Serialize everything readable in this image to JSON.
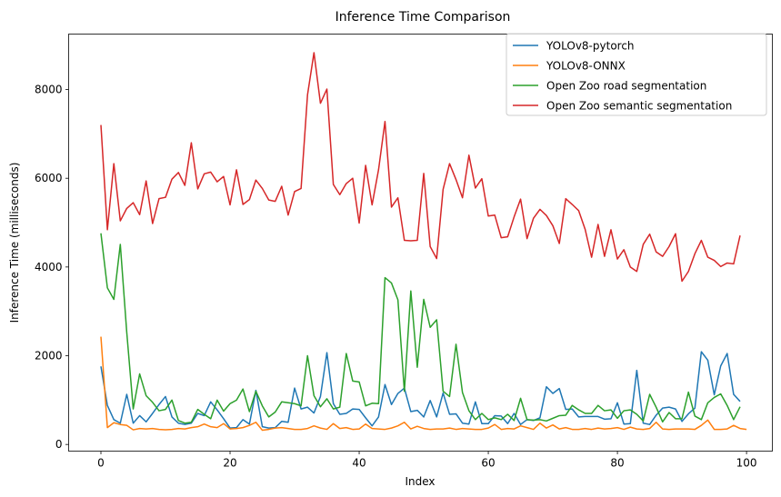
{
  "chart_data": {
    "type": "line",
    "title": "Inference Time Comparison",
    "xlabel": "Index",
    "ylabel": "Inference Time (milliseconds)",
    "xlim": [
      -5,
      104
    ],
    "ylim": [
      -150,
      9250
    ],
    "xticks": [
      0,
      20,
      40,
      60,
      80,
      100
    ],
    "yticks": [
      0,
      2000,
      4000,
      6000,
      8000
    ],
    "legend_position": "top-right",
    "grid": false,
    "series": [
      {
        "name": "YOLOv8-pytorch",
        "color": "#1f77b4",
        "values": [
          1760,
          880,
          560,
          480,
          1130,
          480,
          650,
          510,
          700,
          900,
          1080,
          620,
          480,
          450,
          480,
          700,
          650,
          960,
          780,
          580,
          370,
          380,
          560,
          460,
          1220,
          400,
          370,
          380,
          520,
          500,
          1270,
          800,
          840,
          710,
          1080,
          2070,
          920,
          680,
          700,
          800,
          790,
          600,
          420,
          620,
          1350,
          900,
          1150,
          1270,
          740,
          770,
          620,
          990,
          620,
          1160,
          680,
          690,
          480,
          460,
          960,
          470,
          470,
          650,
          640,
          470,
          700,
          450,
          560,
          540,
          600,
          1300,
          1150,
          1260,
          790,
          800,
          620,
          630,
          630,
          630,
          570,
          580,
          940,
          460,
          470,
          1670,
          480,
          450,
          660,
          820,
          840,
          800,
          520,
          690,
          820,
          2090,
          1900,
          1120,
          1770,
          2050,
          1130,
          970
        ]
      },
      {
        "name": "YOLOv8-ONNX",
        "color": "#ff7f0e",
        "values": [
          2430,
          380,
          490,
          450,
          430,
          330,
          360,
          350,
          360,
          340,
          330,
          340,
          360,
          350,
          380,
          400,
          460,
          400,
          380,
          470,
          350,
          360,
          380,
          430,
          500,
          320,
          340,
          370,
          380,
          360,
          340,
          340,
          360,
          420,
          370,
          340,
          470,
          360,
          380,
          340,
          350,
          460,
          360,
          350,
          340,
          370,
          420,
          500,
          350,
          410,
          360,
          340,
          350,
          350,
          370,
          340,
          360,
          350,
          340,
          340,
          370,
          450,
          340,
          360,
          350,
          420,
          380,
          340,
          480,
          370,
          440,
          350,
          380,
          340,
          340,
          360,
          340,
          370,
          350,
          360,
          380,
          340,
          390,
          350,
          340,
          360,
          500,
          350,
          340,
          350,
          350,
          350,
          340,
          430,
          550,
          340,
          340,
          350,
          430,
          360,
          340
        ]
      },
      {
        "name": "Open Zoo road segmentation",
        "color": "#2ca02c",
        "values": [
          4760,
          3530,
          3270,
          4510,
          2530,
          800,
          1590,
          1100,
          950,
          760,
          790,
          1000,
          540,
          480,
          500,
          790,
          680,
          580,
          1000,
          750,
          920,
          1000,
          1250,
          740,
          1200,
          870,
          620,
          730,
          960,
          940,
          920,
          870,
          2000,
          1100,
          850,
          1030,
          800,
          840,
          2050,
          1430,
          1410,
          870,
          930,
          920,
          3760,
          3640,
          3260,
          1200,
          3460,
          1740,
          3270,
          2640,
          2810,
          1200,
          1080,
          2260,
          1170,
          760,
          560,
          700,
          560,
          600,
          560,
          680,
          540,
          1040,
          560,
          550,
          560,
          530,
          590,
          650,
          660,
          880,
          780,
          700,
          700,
          880,
          760,
          780,
          590,
          760,
          780,
          680,
          530,
          1130,
          840,
          510,
          720,
          580,
          580,
          1180,
          640,
          560,
          940,
          1060,
          1140,
          880,
          560,
          850
        ]
      },
      {
        "name": "Open Zoo semantic segmentation",
        "color": "#d62728",
        "values": [
          7200,
          4840,
          6330,
          5040,
          5320,
          5450,
          5180,
          5940,
          4980,
          5540,
          5570,
          5980,
          6130,
          5840,
          6800,
          5760,
          6100,
          6140,
          5920,
          6040,
          5400,
          6190,
          5410,
          5520,
          5960,
          5770,
          5510,
          5480,
          5820,
          5170,
          5700,
          5770,
          7880,
          8830,
          7690,
          8010,
          5860,
          5630,
          5880,
          6000,
          4990,
          6290,
          5400,
          6190,
          7280,
          5350,
          5560,
          4600,
          4590,
          4600,
          6110,
          4460,
          4190,
          5750,
          6330,
          5970,
          5560,
          6520,
          5780,
          5990,
          5150,
          5170,
          4660,
          4680,
          5130,
          5530,
          4640,
          5100,
          5300,
          5160,
          4930,
          4530,
          5540,
          5410,
          5270,
          4850,
          4220,
          4960,
          4240,
          4840,
          4180,
          4390,
          4000,
          3900,
          4510,
          4740,
          4340,
          4240,
          4460,
          4750,
          3680,
          3900,
          4300,
          4600,
          4220,
          4150,
          4010,
          4090,
          4070,
          4710
        ]
      }
    ]
  }
}
